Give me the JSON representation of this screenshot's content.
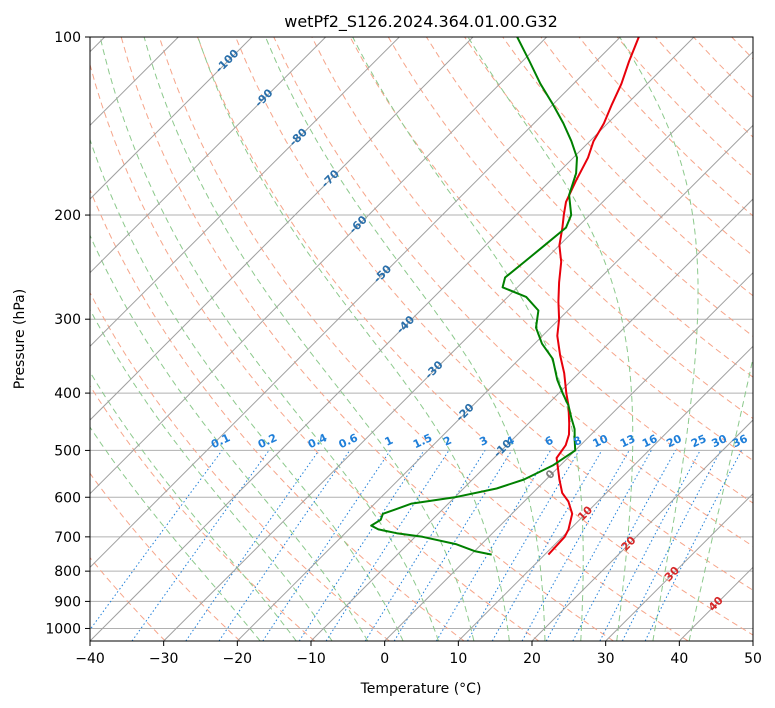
{
  "chart_data": {
    "type": "line",
    "title": "wetPf2_S126.2024.364.01.00.G32",
    "xlabel": "Temperature (°C)",
    "ylabel": "Pressure (hPa)",
    "xlim": [
      -40,
      50
    ],
    "ylim": [
      1050,
      100
    ],
    "y_scale": "log",
    "x_ticks": [
      -40,
      -30,
      -20,
      -10,
      0,
      10,
      20,
      30,
      40,
      50
    ],
    "x_tick_labels": [
      "−40",
      "−30",
      "−20",
      "−10",
      "0",
      "10",
      "20",
      "30",
      "40",
      "50"
    ],
    "y_ticks": [
      100,
      200,
      300,
      400,
      500,
      600,
      700,
      800,
      900,
      1000
    ],
    "y_tick_labels": [
      "100",
      "200",
      "300",
      "400",
      "500",
      "600",
      "700",
      "800",
      "900",
      "1000"
    ],
    "grid": true,
    "colors": {
      "temperature": "#e8000b",
      "dewpoint": "#008000",
      "isotherm": "#a0a0a0",
      "dry_adiabat": "#f6a58a",
      "moist_adiabat": "#8cc98c",
      "mixing_ratio": "#1f7fd9",
      "isotherm_label": "#2a6faa",
      "red_label": "#d62728"
    },
    "series": [
      {
        "key": "temperature",
        "p": [
          750,
          700,
          680,
          640,
          610,
          590,
          560,
          535,
          515,
          490,
          470,
          450,
          420,
          400,
          370,
          345,
          320,
          300,
          280,
          260,
          240,
          225,
          210,
          200,
          190,
          175,
          160,
          150,
          140,
          130,
          120,
          110,
          100
        ],
        "t": [
          10.5,
          10.3,
          9.8,
          8.2,
          6.0,
          4.0,
          1.8,
          0.0,
          -1.5,
          -2.0,
          -3.0,
          -4.5,
          -7.0,
          -9.0,
          -12.0,
          -15.0,
          -18.0,
          -20.0,
          -22.5,
          -25.0,
          -27.5,
          -30.0,
          -32.0,
          -33.5,
          -35.0,
          -36.5,
          -38.0,
          -39.5,
          -40.5,
          -42.0,
          -43.5,
          -45.5,
          -47.5
        ]
      },
      {
        "key": "dewpoint",
        "p": [
          750,
          740,
          720,
          700,
          690,
          680,
          670,
          655,
          640,
          630,
          615,
          600,
          580,
          560,
          530,
          500,
          480,
          460,
          440,
          420,
          400,
          380,
          350,
          330,
          310,
          290,
          275,
          265,
          255,
          240,
          225,
          210,
          200,
          185,
          170,
          160,
          150,
          140,
          130,
          120,
          110,
          100
        ],
        "t": [
          2.8,
          0.0,
          -3.5,
          -9.0,
          -13.0,
          -16.0,
          -17.5,
          -17.0,
          -17.5,
          -16.5,
          -15.0,
          -10.0,
          -5.5,
          -3.0,
          -1.0,
          0.0,
          -1.5,
          -3.0,
          -5.0,
          -7.0,
          -9.5,
          -12.0,
          -15.5,
          -19.0,
          -22.0,
          -24.0,
          -27.5,
          -32.0,
          -33.0,
          -32.5,
          -32.0,
          -31.5,
          -32.5,
          -35.5,
          -37.5,
          -39.5,
          -42.5,
          -46.0,
          -50.0,
          -54.5,
          -59.0,
          -64.0
        ]
      }
    ],
    "isotherm_labels": [
      "-100",
      "-90",
      "-80",
      "-70",
      "-60",
      "-50",
      "-40",
      "-30",
      "-20",
      "-10",
      "0",
      "10",
      "20",
      "30",
      "40"
    ],
    "mixing_ratio_labels": [
      "0.1",
      "0.2",
      "0.4",
      "0.6",
      "1",
      "1.5",
      "2",
      "3",
      "4",
      "6",
      "8",
      "10",
      "13",
      "16",
      "20",
      "25",
      "30",
      "36"
    ]
  }
}
